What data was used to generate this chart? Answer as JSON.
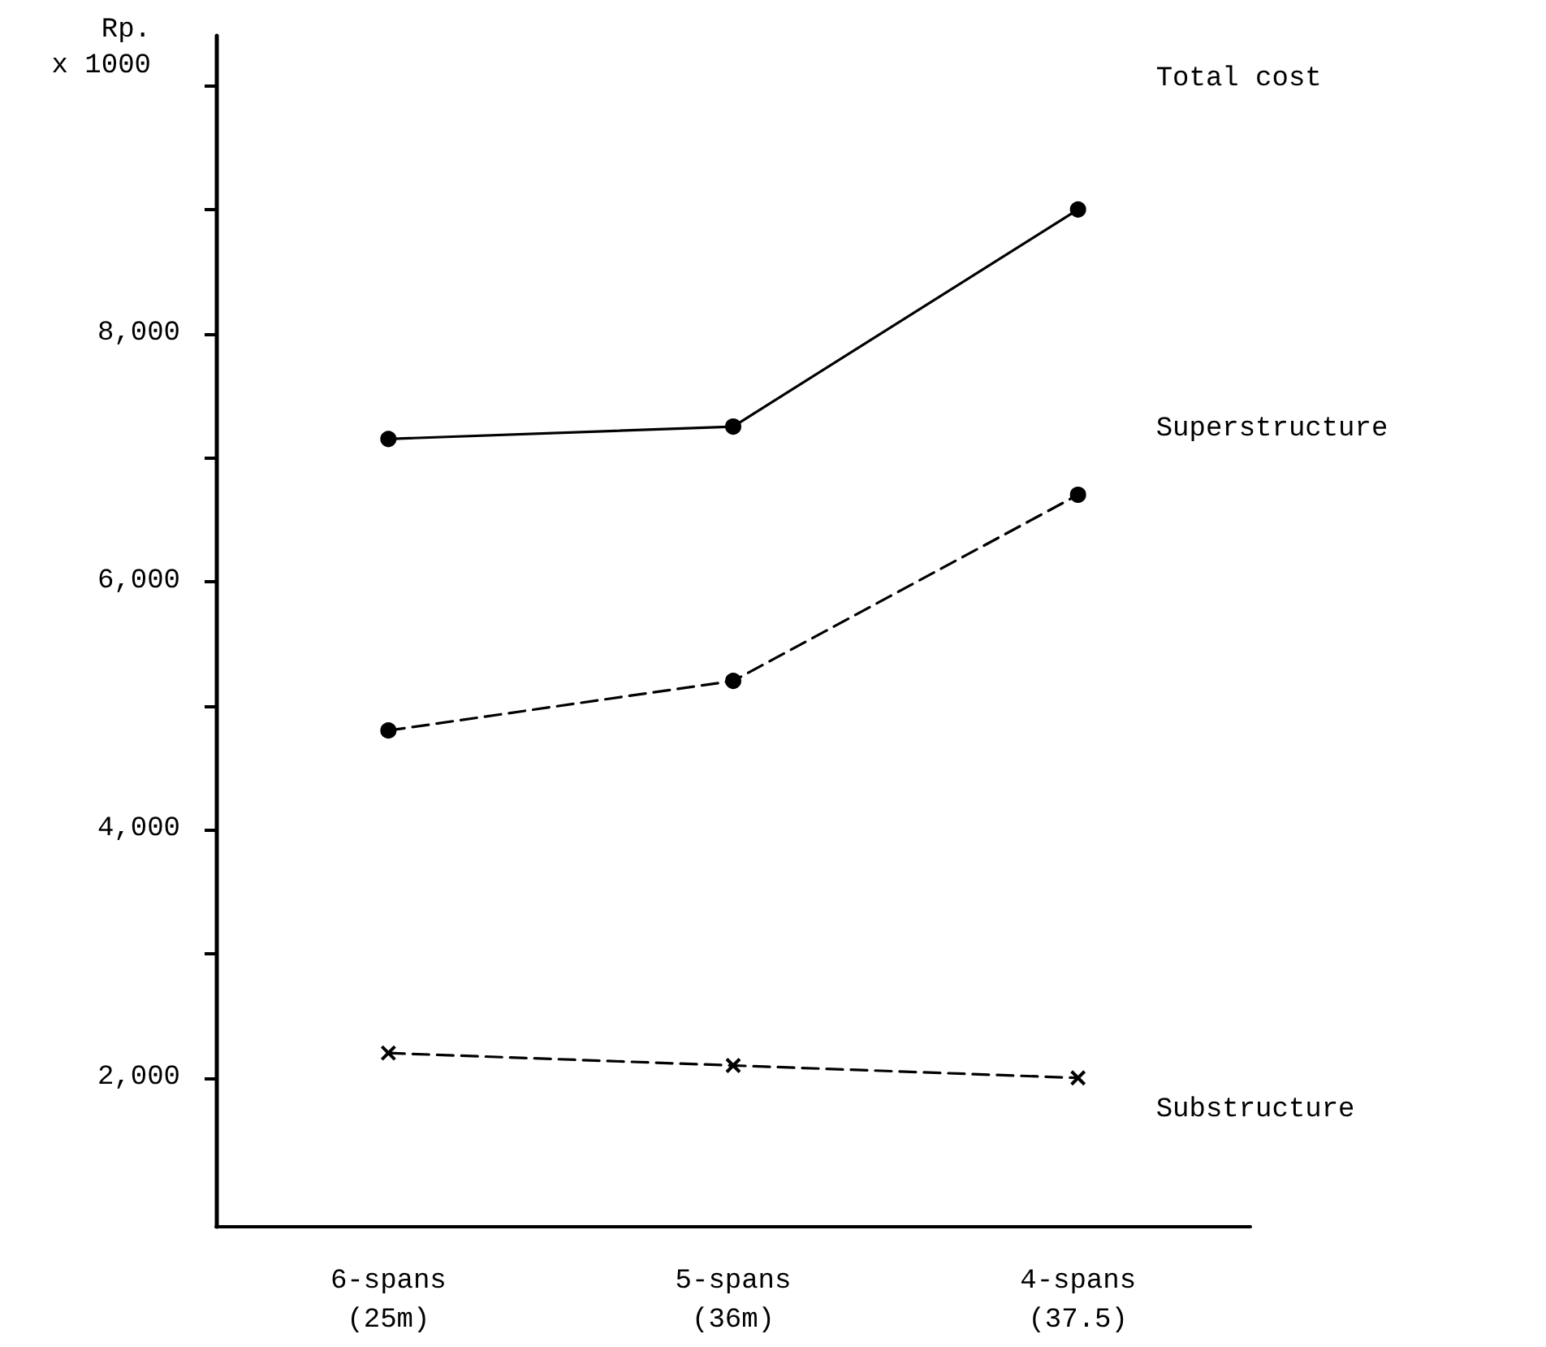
{
  "chart_data": {
    "type": "line",
    "ylabel": "Rp.\nx 1000",
    "categories": [
      "6-spans\n(25m)",
      "5-spans\n(36m)",
      "4-spans\n(37.5)"
    ],
    "series": [
      {
        "name": "Total cost",
        "color": "#000000",
        "values": [
          7150,
          7250,
          9000
        ],
        "marker": "circle",
        "line_style": "solid"
      },
      {
        "name": "Superstructure",
        "color": "#000000",
        "values": [
          4800,
          5200,
          6700
        ],
        "marker": "circle",
        "line_style": "dashed"
      },
      {
        "name": "Substructure",
        "color": "#000000",
        "values": [
          2200,
          2100,
          2000
        ],
        "marker": "cross",
        "line_style": "dashed"
      }
    ],
    "ylim": [
      800,
      10400
    ],
    "yticks": [
      {
        "value": 2000,
        "label": "2,000"
      },
      {
        "value": 3000,
        "label": null
      },
      {
        "value": 4000,
        "label": "4,000"
      },
      {
        "value": 5000,
        "label": null
      },
      {
        "value": 6000,
        "label": "6,000"
      },
      {
        "value": 7000,
        "label": null
      },
      {
        "value": 8000,
        "label": "8,000"
      },
      {
        "value": 9000,
        "label": null
      },
      {
        "value": 10000,
        "label": null
      }
    ],
    "grid": false,
    "legend": false
  }
}
